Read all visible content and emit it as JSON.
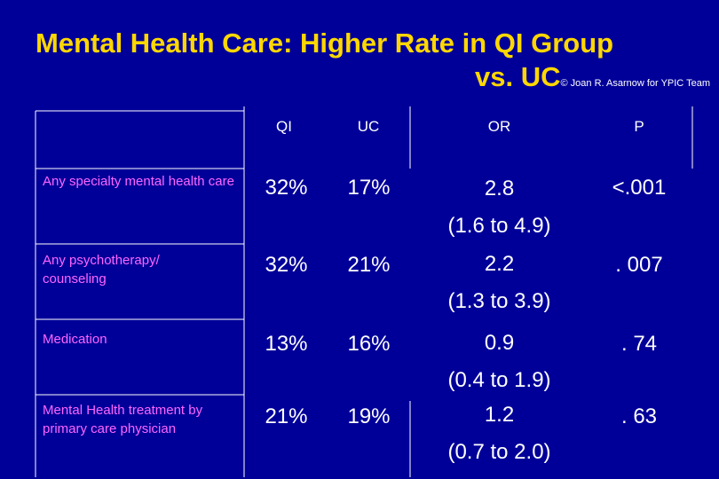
{
  "title": {
    "line1": "Mental Health Care: Higher Rate in QI Group",
    "line2": "vs. UC",
    "copyright": "© Joan R. Asarnow for YPIC Team"
  },
  "columns": [
    "QI",
    "UC",
    "OR",
    "P"
  ],
  "rows": [
    {
      "label": "Any specialty mental health care",
      "qi": "32%",
      "uc": "17%",
      "or": "2.8",
      "ci": "(1.6 to 4.9)",
      "p": "<.001"
    },
    {
      "label": "Any psychotherapy/ counseling",
      "qi": "32%",
      "uc": "21%",
      "or": "2.2",
      "ci": "(1.3 to 3.9)",
      "p": ". 007"
    },
    {
      "label": "Medication",
      "qi": "13%",
      "uc": "16%",
      "or": "0.9",
      "ci": "(0.4 to 1.9)",
      "p": ". 74"
    },
    {
      "label": "Mental Health treatment by primary care physician",
      "qi": "21%",
      "uc": "19%",
      "or": "1.2",
      "ci": "(0.7 to 2.0)",
      "p": ". 63"
    }
  ],
  "colors": {
    "background": "#000099",
    "title": "#FFD700",
    "label": "#FF66FF",
    "text": "#FFFFFF"
  }
}
